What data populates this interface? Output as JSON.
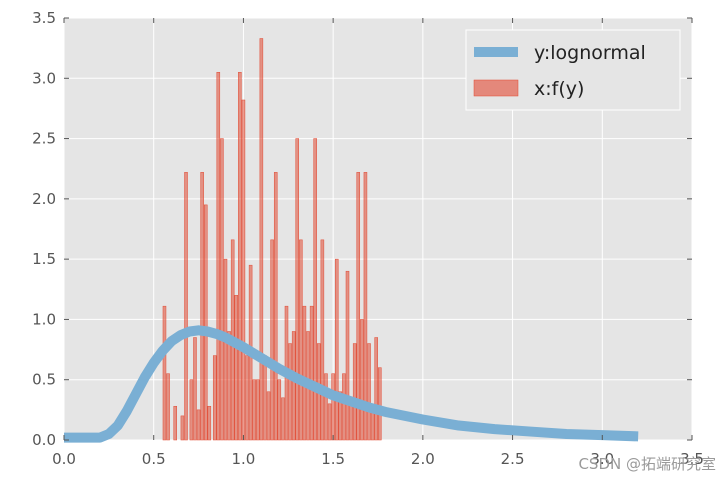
{
  "chart_data": {
    "type": "bar",
    "title": "",
    "xlabel": "",
    "ylabel": "",
    "xlim": [
      0.0,
      3.5
    ],
    "ylim": [
      0.0,
      3.5
    ],
    "xticks": [
      "0.0",
      "0.5",
      "1.0",
      "1.5",
      "2.0",
      "2.5",
      "3.0",
      "3.5"
    ],
    "yticks": [
      "0.0",
      "0.5",
      "1.0",
      "1.5",
      "2.0",
      "2.5",
      "3.0",
      "3.5"
    ],
    "grid": true,
    "legend_position": "top-right",
    "series": [
      {
        "name": "y:lognormal",
        "kind": "line",
        "color": "#7aafd4",
        "x": [
          0.0,
          0.1,
          0.2,
          0.25,
          0.3,
          0.35,
          0.4,
          0.45,
          0.5,
          0.55,
          0.6,
          0.65,
          0.7,
          0.75,
          0.8,
          0.85,
          0.9,
          0.95,
          1.0,
          1.1,
          1.2,
          1.3,
          1.4,
          1.5,
          1.6,
          1.7,
          1.8,
          1.9,
          2.0,
          2.2,
          2.4,
          2.6,
          2.8,
          3.0,
          3.2
        ],
        "y": [
          0.02,
          0.02,
          0.02,
          0.05,
          0.12,
          0.24,
          0.38,
          0.52,
          0.64,
          0.74,
          0.82,
          0.87,
          0.9,
          0.91,
          0.9,
          0.88,
          0.85,
          0.81,
          0.77,
          0.68,
          0.59,
          0.51,
          0.44,
          0.37,
          0.32,
          0.27,
          0.23,
          0.2,
          0.17,
          0.12,
          0.09,
          0.07,
          0.05,
          0.04,
          0.03
        ]
      },
      {
        "name": "x:f(y)",
        "kind": "bar",
        "color": "#e24a33",
        "x": [
          0.56,
          0.58,
          0.62,
          0.66,
          0.68,
          0.71,
          0.73,
          0.75,
          0.77,
          0.79,
          0.81,
          0.84,
          0.86,
          0.88,
          0.9,
          0.92,
          0.94,
          0.96,
          0.98,
          1.0,
          1.02,
          1.04,
          1.06,
          1.08,
          1.1,
          1.12,
          1.14,
          1.16,
          1.18,
          1.2,
          1.22,
          1.24,
          1.26,
          1.28,
          1.3,
          1.32,
          1.34,
          1.36,
          1.38,
          1.4,
          1.42,
          1.44,
          1.46,
          1.48,
          1.5,
          1.52,
          1.54,
          1.56,
          1.58,
          1.6,
          1.62,
          1.64,
          1.66,
          1.68,
          1.7,
          1.72,
          1.74,
          1.76
        ],
        "y": [
          1.11,
          0.55,
          0.28,
          0.2,
          2.22,
          0.5,
          0.85,
          0.25,
          2.22,
          1.95,
          0.28,
          0.7,
          3.05,
          2.5,
          1.5,
          0.9,
          1.66,
          1.2,
          3.05,
          2.82,
          0.7,
          1.45,
          0.5,
          0.5,
          3.33,
          0.7,
          0.4,
          1.66,
          2.22,
          0.5,
          0.35,
          1.11,
          0.8,
          0.9,
          2.5,
          1.66,
          1.11,
          0.9,
          1.11,
          2.5,
          0.8,
          1.66,
          0.55,
          0.3,
          0.55,
          1.5,
          0.4,
          0.55,
          1.4,
          0.3,
          0.8,
          2.22,
          1.0,
          2.22,
          0.8,
          0.25,
          0.85,
          0.6
        ]
      }
    ]
  },
  "watermark": "CSDN @拓端研究室",
  "colors": {
    "plot_bg": "#e5e5e5",
    "grid": "#ffffff",
    "axis": "#555555"
  }
}
